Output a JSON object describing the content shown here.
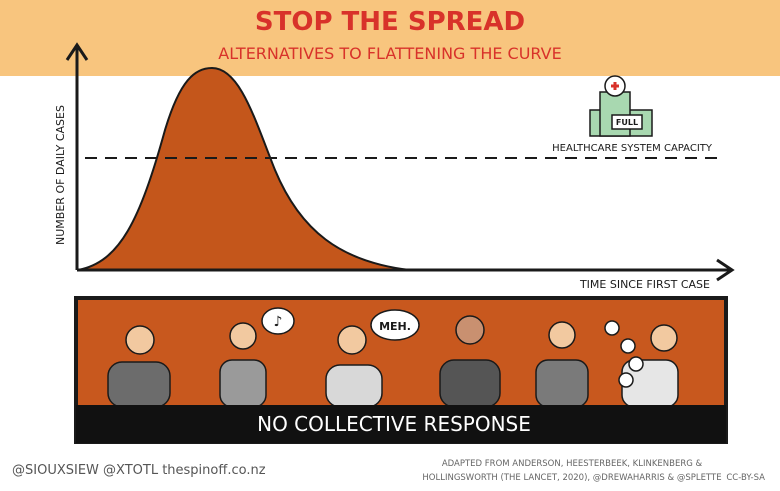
{
  "header": {
    "title": "STOP THE SPREAD",
    "subtitle": "ALTERNATIVES TO FLATTENING THE CURVE"
  },
  "graph": {
    "y_axis_label": "NUMBER OF DAILY CASES",
    "x_axis_label": "TIME SINCE FIRST CASE",
    "capacity_label": "HEALTHCARE SYSTEM CAPACITY",
    "hospital_sign": "FULL"
  },
  "scene": {
    "speech_bubble": "MEH.",
    "caption": "NO COLLECTIVE RESPONSE"
  },
  "footer": {
    "credits": "@SIOUXSIEW @XTOTL thespinoff.co.nz",
    "source_lines": [
      "ADAPTED FROM ANDERSON, HEESTERBEEK, KLINKENBERG &",
      "HOLLINGSWORTH (THE LANCET, 2020), @DREWAHARRIS & @SPLETTE"
    ],
    "license": "CC-BY-SA"
  }
}
